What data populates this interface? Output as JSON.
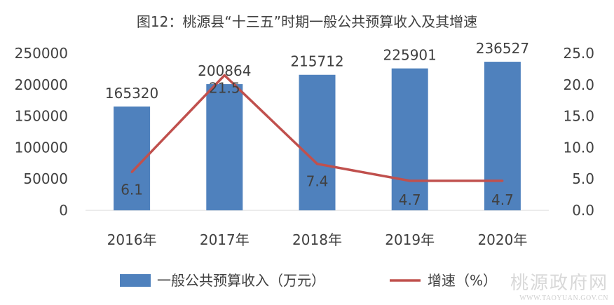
{
  "chart_data": {
    "type": "bar+line",
    "title": "图12：桃源县“十三五”时期一般公共预算收入及其增速",
    "categories": [
      "2016年",
      "2017年",
      "2018年",
      "2019年",
      "2020年"
    ],
    "series": [
      {
        "name": "一般公共预算收入（万元）",
        "type": "bar",
        "axis": "left",
        "values": [
          165320,
          200864,
          215712,
          225901,
          236527
        ],
        "labels": [
          "165320",
          "200864",
          "215712",
          "225901",
          "236527"
        ],
        "color": "#4f81bd"
      },
      {
        "name": "增速（%）",
        "type": "line",
        "axis": "right",
        "values": [
          6.1,
          21.5,
          7.4,
          4.7,
          4.7
        ],
        "labels": [
          "6.1",
          "21.5",
          "7.4",
          "4.7",
          "4.7"
        ],
        "color": "#c0504d"
      }
    ],
    "y_left": {
      "min": 0,
      "max": 250000,
      "ticks": [
        "0",
        "50000",
        "100000",
        "150000",
        "200000",
        "250000"
      ]
    },
    "y_right": {
      "min": 0,
      "max": 25,
      "ticks": [
        "0.0",
        "5.0",
        "10.0",
        "15.0",
        "20.0",
        "25.0"
      ]
    },
    "grid": false,
    "legend_position": "bottom"
  },
  "watermark": {
    "text": "桃源政府网",
    "url": "WWW.TAOYUAN.GOV.CN"
  }
}
